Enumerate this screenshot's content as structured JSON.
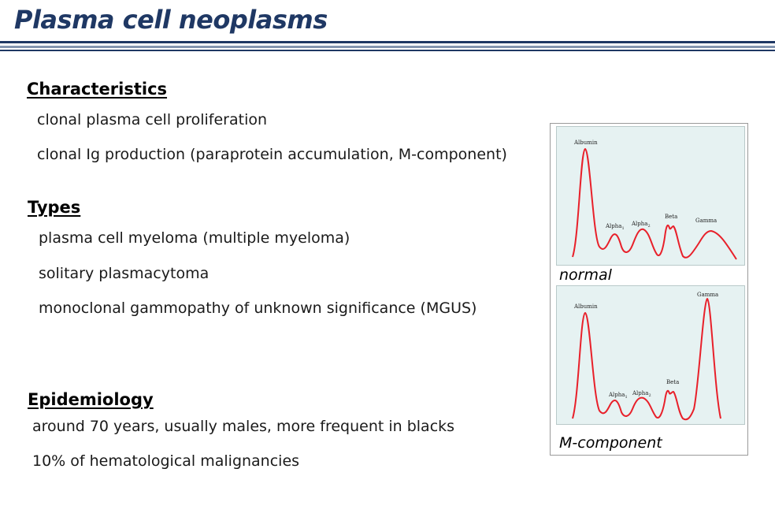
{
  "title": "Plasma cell neoplasms",
  "sections": {
    "characteristics": {
      "heading": "Characteristics",
      "items": [
        "clonal plasma cell proliferation",
        "clonal Ig production (paraprotein accumulation, M-component)"
      ]
    },
    "types": {
      "heading": "Types",
      "items": [
        "plasma cell myeloma (multiple myeloma)",
        "solitary plasmacytoma",
        "monoclonal gammopathy of unknown significance (MGUS)"
      ]
    },
    "epidemiology": {
      "heading": "Epidemiology",
      "items": [
        "around 70 years, usually males, more frequent in blacks",
        "10% of hematological malignancies"
      ]
    }
  },
  "figures": {
    "normal": {
      "caption": "normal",
      "peak_labels": {
        "albumin": "Albumin",
        "alpha1": "Alpha",
        "alpha2": "Alpha",
        "beta": "Beta",
        "gamma": "Gamma"
      },
      "subscripts": {
        "alpha1": "1",
        "alpha2": "2"
      }
    },
    "m_component": {
      "caption": "M-component",
      "peak_labels": {
        "albumin": "Albumin",
        "alpha1": "Alpha",
        "alpha2": "Alpha",
        "beta": "Beta",
        "gamma": "Gamma"
      },
      "subscripts": {
        "alpha1": "1",
        "alpha2": "2"
      }
    }
  },
  "colors": {
    "title": "#1f3864",
    "trace": "#e8202a",
    "plot_bg": "#e6f2f2"
  }
}
